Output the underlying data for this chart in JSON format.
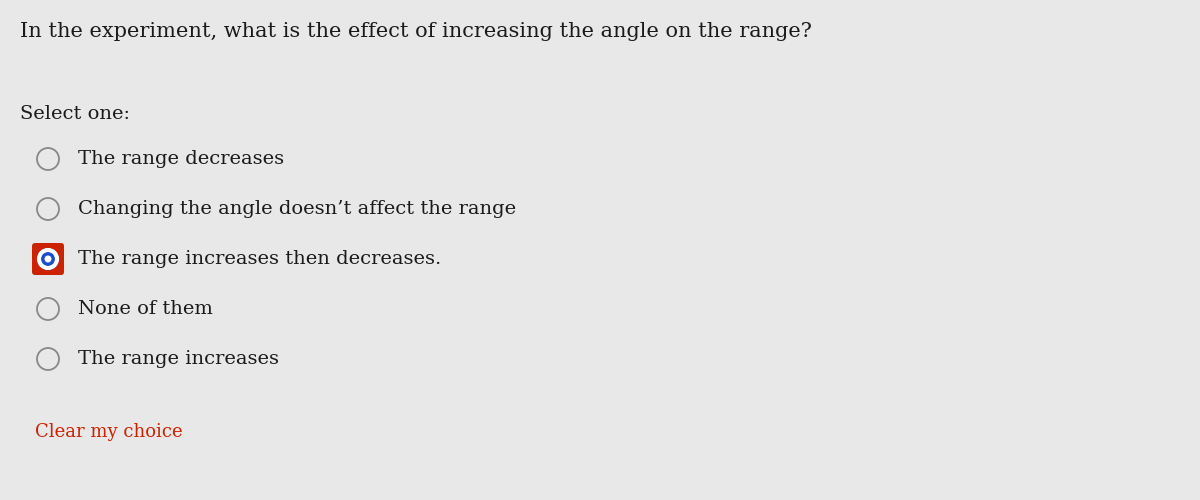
{
  "question": "In the experiment, what is the effect of increasing the angle on the range?",
  "select_label": "Select one:",
  "options": [
    {
      "text": "The range increases",
      "selected": false
    },
    {
      "text": "None of them",
      "selected": false
    },
    {
      "text": "The range increases then decreases.",
      "selected": true
    },
    {
      "text": "Changing the angle doesn’t affect the range",
      "selected": false
    },
    {
      "text": "The range decreases",
      "selected": false
    }
  ],
  "clear_text": "Clear my choice",
  "background_color": "#e8e8e8",
  "text_color": "#1a1a1a",
  "clear_color": "#cc2200",
  "selected_border_color": "#cc2200",
  "selected_fill_color": "#1a4dcc",
  "unselected_stroke": "#888888",
  "question_fontsize": 15,
  "label_fontsize": 14,
  "option_fontsize": 14,
  "clear_fontsize": 13
}
